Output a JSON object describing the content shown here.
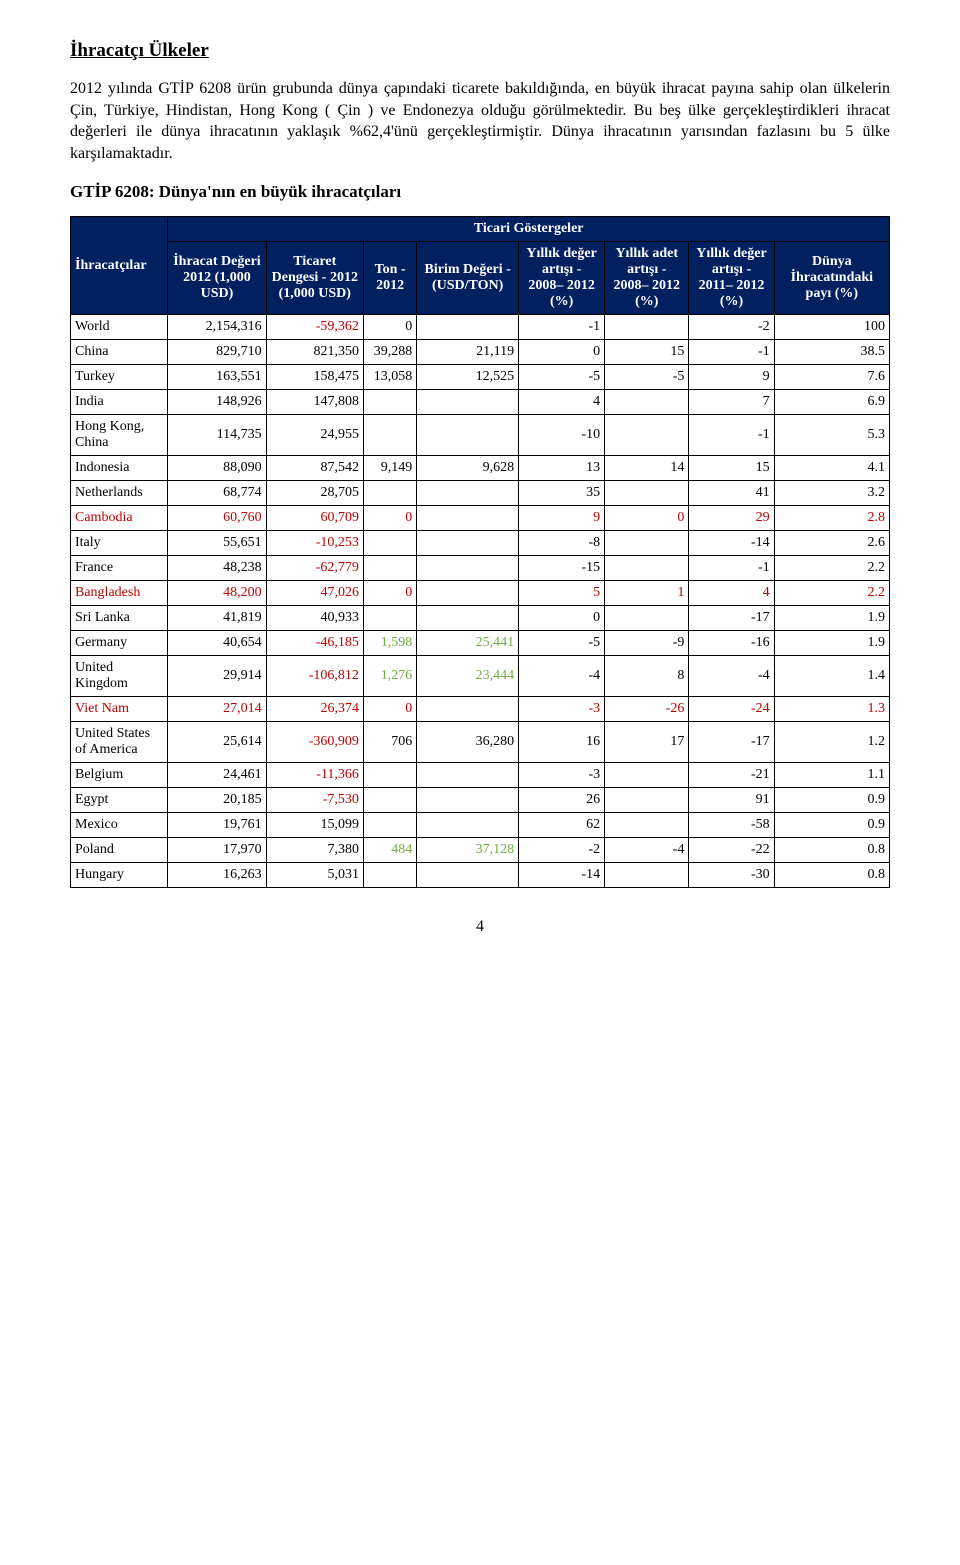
{
  "title": "İhracatçı Ülkeler",
  "paragraph": "2012 yılında GTİP 6208 ürün grubunda dünya çapındaki ticarete bakıldığında, en büyük ihracat payına sahip olan ülkelerin Çin, Türkiye, Hindistan, Hong Kong ( Çin ) ve Endonezya olduğu görülmektedir. Bu beş ülke gerçekleştirdikleri ihracat değerleri ile dünya ihracatının yaklaşık %62,4'ünü gerçekleştirmiştir. Dünya ihracatının yarısından fazlasını bu 5 ülke karşılamaktadır.",
  "subtitle": "GTİP 6208: Dünya'nın en büyük ihracatçıları",
  "page_number": "4",
  "table": {
    "top_header": "Ticari Göstergeler",
    "col_headers": [
      "İhracatçılar",
      "İhracat Değeri 2012 (1,000 USD)",
      "Ticaret Dengesi - 2012 (1,000 USD)",
      "Ton - 2012",
      "Birim Değeri - (USD/TON)",
      "Yıllık değer artışı - 2008– 2012 (%)",
      "Yıllık adet artışı - 2008– 2012 (%)",
      "Yıllık değer artışı - 2011– 2012 (%)",
      "Dünya İhracatındaki payı (%)"
    ],
    "highlight_rows": [
      "Cambodia",
      "Bangladesh",
      "Viet Nam"
    ],
    "rows": [
      {
        "label": "World",
        "cells": [
          "2,154,316",
          "-59,362",
          "0",
          "",
          "-1",
          "",
          "-2",
          "100"
        ],
        "neg": [
          false,
          true,
          false,
          false,
          false,
          false,
          false,
          false
        ]
      },
      {
        "label": "China",
        "cells": [
          "829,710",
          "821,350",
          "39,288",
          "21,119",
          "0",
          "15",
          "-1",
          "38.5"
        ],
        "neg": [
          false,
          false,
          false,
          false,
          false,
          false,
          false,
          false
        ]
      },
      {
        "label": "Turkey",
        "cells": [
          "163,551",
          "158,475",
          "13,058",
          "12,525",
          "-5",
          "-5",
          "9",
          "7.6"
        ],
        "neg": [
          false,
          false,
          false,
          false,
          false,
          false,
          false,
          false
        ]
      },
      {
        "label": "India",
        "cells": [
          "148,926",
          "147,808",
          "",
          "",
          "4",
          "",
          "7",
          "6.9"
        ],
        "neg": [
          false,
          false,
          false,
          false,
          false,
          false,
          false,
          false
        ]
      },
      {
        "label": "Hong Kong, China",
        "cells": [
          "114,735",
          "24,955",
          "",
          "",
          "-10",
          "",
          "-1",
          "5.3"
        ],
        "neg": [
          false,
          false,
          false,
          false,
          false,
          false,
          false,
          false
        ]
      },
      {
        "label": "Indonesia",
        "cells": [
          "88,090",
          "87,542",
          "9,149",
          "9,628",
          "13",
          "14",
          "15",
          "4.1"
        ],
        "neg": [
          false,
          false,
          false,
          false,
          false,
          false,
          false,
          false
        ]
      },
      {
        "label": "Netherlands",
        "cells": [
          "68,774",
          "28,705",
          "",
          "",
          "35",
          "",
          "41",
          "3.2"
        ],
        "neg": [
          false,
          false,
          false,
          false,
          false,
          false,
          false,
          false
        ]
      },
      {
        "label": "Cambodia",
        "cells": [
          "60,760",
          "60,709",
          "0",
          "",
          "9",
          "0",
          "29",
          "2.8"
        ],
        "neg": [
          false,
          false,
          false,
          false,
          false,
          false,
          false,
          false
        ]
      },
      {
        "label": "Italy",
        "cells": [
          "55,651",
          "-10,253",
          "",
          "",
          "-8",
          "",
          "-14",
          "2.6"
        ],
        "neg": [
          false,
          true,
          false,
          false,
          false,
          false,
          false,
          false
        ]
      },
      {
        "label": "France",
        "cells": [
          "48,238",
          "-62,779",
          "",
          "",
          "-15",
          "",
          "-1",
          "2.2"
        ],
        "neg": [
          false,
          true,
          false,
          false,
          false,
          false,
          false,
          false
        ]
      },
      {
        "label": "Bangladesh",
        "cells": [
          "48,200",
          "47,026",
          "0",
          "",
          "5",
          "1",
          "4",
          "2.2"
        ],
        "neg": [
          false,
          false,
          false,
          false,
          false,
          false,
          false,
          false
        ]
      },
      {
        "label": "Sri Lanka",
        "cells": [
          "41,819",
          "40,933",
          "",
          "",
          "0",
          "",
          "-17",
          "1.9"
        ],
        "neg": [
          false,
          false,
          false,
          false,
          false,
          false,
          false,
          false
        ]
      },
      {
        "label": "Germany",
        "cells": [
          "40,654",
          "-46,185",
          "1,598",
          "25,441",
          "-5",
          "-9",
          "-16",
          "1.9"
        ],
        "neg": [
          false,
          true,
          false,
          false,
          false,
          false,
          false,
          false
        ],
        "greenCols": [
          2,
          3
        ]
      },
      {
        "label": "United Kingdom",
        "cells": [
          "29,914",
          "-106,812",
          "1,276",
          "23,444",
          "-4",
          "8",
          "-4",
          "1.4"
        ],
        "neg": [
          false,
          true,
          false,
          false,
          false,
          false,
          false,
          false
        ],
        "greenCols": [
          2,
          3
        ]
      },
      {
        "label": "Viet Nam",
        "cells": [
          "27,014",
          "26,374",
          "0",
          "",
          "-3",
          "-26",
          "-24",
          "1.3"
        ],
        "neg": [
          false,
          false,
          false,
          false,
          false,
          false,
          false,
          false
        ]
      },
      {
        "label": "United States of America",
        "cells": [
          "25,614",
          "-360,909",
          "706",
          "36,280",
          "16",
          "17",
          "-17",
          "1.2"
        ],
        "neg": [
          false,
          true,
          false,
          false,
          false,
          false,
          false,
          false
        ]
      },
      {
        "label": "Belgium",
        "cells": [
          "24,461",
          "-11,366",
          "",
          "",
          "-3",
          "",
          "-21",
          "1.1"
        ],
        "neg": [
          false,
          true,
          false,
          false,
          false,
          false,
          false,
          false
        ]
      },
      {
        "label": "Egypt",
        "cells": [
          "20,185",
          "-7,530",
          "",
          "",
          "26",
          "",
          "91",
          "0.9"
        ],
        "neg": [
          false,
          true,
          false,
          false,
          false,
          false,
          false,
          false
        ]
      },
      {
        "label": "Mexico",
        "cells": [
          "19,761",
          "15,099",
          "",
          "",
          "62",
          "",
          "-58",
          "0.9"
        ],
        "neg": [
          false,
          false,
          false,
          false,
          false,
          false,
          false,
          false
        ]
      },
      {
        "label": "Poland",
        "cells": [
          "17,970",
          "7,380",
          "484",
          "37,128",
          "-2",
          "-4",
          "-22",
          "0.8"
        ],
        "neg": [
          false,
          false,
          false,
          false,
          false,
          false,
          false,
          false
        ],
        "greenCols": [
          2,
          3
        ]
      },
      {
        "label": "Hungary",
        "cells": [
          "16,263",
          "5,031",
          "",
          "",
          "-14",
          "",
          "-30",
          "0.8"
        ],
        "neg": [
          false,
          false,
          false,
          false,
          false,
          false,
          false,
          false
        ]
      }
    ],
    "colors": {
      "header_bg": "#002060",
      "header_fg": "#ffffff",
      "highlight_fg": "#C00000",
      "negative_fg": "#C00000",
      "green_fg": "#70AD47",
      "default_fg": "#000000"
    }
  }
}
